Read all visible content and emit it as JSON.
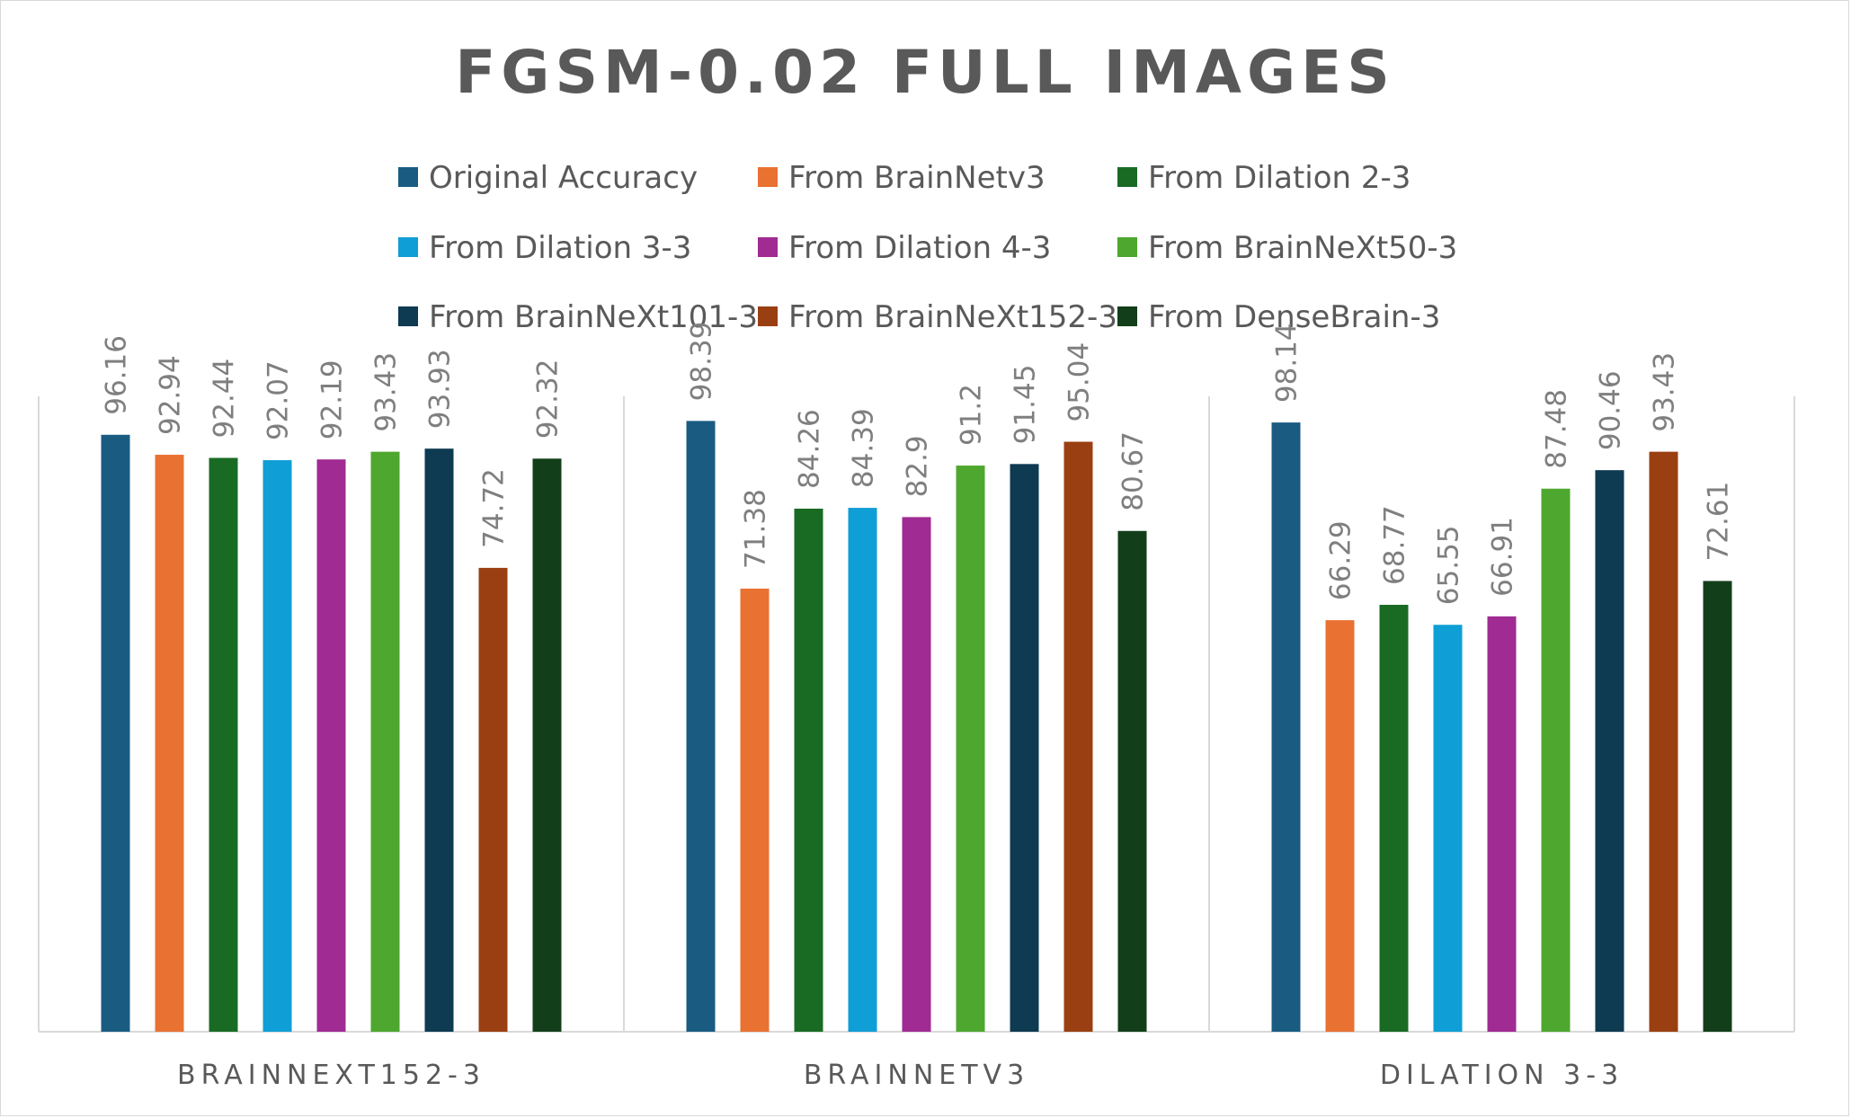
{
  "chart_data": {
    "type": "bar",
    "title": "FGSM-0.02 FULL IMAGES",
    "categories": [
      "BRAINNEXT152-3",
      "BRAINNETV3",
      "DILATION 3-3"
    ],
    "legend_position": "top",
    "grid": false,
    "ylim": [
      0,
      100
    ],
    "series": [
      {
        "name": "Original Accuracy",
        "color": "#1a5b82",
        "values": [
          96.16,
          98.39,
          98.14
        ],
        "labels": [
          "96.16",
          "98.39",
          "98.14"
        ]
      },
      {
        "name": "From BrainNetv3",
        "color": "#e97132",
        "values": [
          92.94,
          71.38,
          66.29
        ],
        "labels": [
          "92.94",
          "71.38",
          "66.29"
        ]
      },
      {
        "name": "From Dilation 2-3",
        "color": "#196b24",
        "values": [
          92.44,
          84.26,
          68.77
        ],
        "labels": [
          "92.44",
          "84.26",
          "68.77"
        ]
      },
      {
        "name": "From Dilation 3-3",
        "color": "#0f9ed5",
        "values": [
          92.07,
          84.39,
          65.55
        ],
        "labels": [
          "92.07",
          "84.39",
          "65.55"
        ]
      },
      {
        "name": "From Dilation 4-3",
        "color": "#a02b93",
        "values": [
          92.19,
          82.9,
          66.91
        ],
        "labels": [
          "92.19",
          "82.9",
          "66.91"
        ]
      },
      {
        "name": "From BrainNeXt50-3",
        "color": "#4ea72e",
        "values": [
          93.43,
          91.2,
          87.48
        ],
        "labels": [
          "93.43",
          "91.2",
          "87.48"
        ]
      },
      {
        "name": "From BrainNeXt101-3",
        "color": "#0e3a52",
        "values": [
          93.93,
          91.45,
          90.46
        ],
        "labels": [
          "93.93",
          "91.45",
          "90.46"
        ]
      },
      {
        "name": "From BrainNeXt152-3",
        "color": "#9a3f12",
        "values": [
          74.72,
          95.04,
          93.43
        ],
        "labels": [
          "74.72",
          "95.04",
          "93.43"
        ]
      },
      {
        "name": "From DenseBrain-3",
        "color": "#123f1a",
        "values": [
          92.32,
          80.67,
          72.61
        ],
        "labels": [
          "92.32",
          "80.67",
          "72.61"
        ]
      }
    ],
    "colors": {
      "text": "#595959",
      "data_label": "#7f7f7f",
      "axis": "#d9d9d9"
    }
  }
}
